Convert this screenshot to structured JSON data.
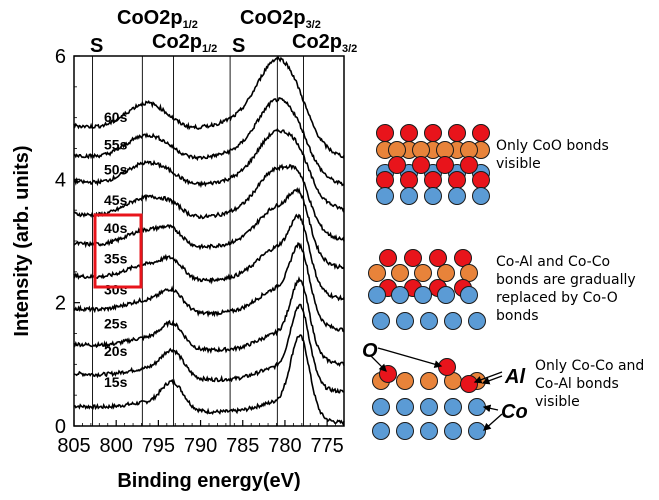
{
  "chart_data": {
    "type": "line",
    "xlabel": "Binding energy(eV)",
    "ylabel": "Intensity (arb. units)",
    "xlim": [
      805,
      773
    ],
    "ylim": [
      0,
      6
    ],
    "x_ticks": [
      "805",
      "800",
      "795",
      "790",
      "785",
      "780",
      "775"
    ],
    "y_ticks": [
      "0",
      "2",
      "4",
      "6"
    ],
    "top_labels": [
      {
        "main": "S",
        "sub": ""
      },
      {
        "main": "CoO2p",
        "sub": "1/2"
      },
      {
        "main": "Co2p",
        "sub": "1/2"
      },
      {
        "main": "S",
        "sub": ""
      },
      {
        "main": "CoO2p",
        "sub": "3/2"
      },
      {
        "main": "Co2p",
        "sub": "3/2"
      }
    ],
    "reference_lines_x": [
      802.8,
      796.9,
      793.2,
      786.5,
      780.9,
      777.8
    ],
    "highlight": {
      "series": [
        "40s",
        "35s"
      ],
      "color": "#e8141b"
    },
    "series": [
      {
        "name": "15s",
        "offset": 0.05,
        "co_metal_peak": 1.2,
        "coo_peak": 0.25,
        "co_metal_peak_half": 0.42,
        "coo_peak_half": 0.12
      },
      {
        "name": "20s",
        "offset": 0.55,
        "co_metal_peak": 1.15,
        "coo_peak": 0.3,
        "co_metal_peak_half": 0.4,
        "coo_peak_half": 0.15
      },
      {
        "name": "25s",
        "offset": 1.0,
        "co_metal_peak": 1.05,
        "coo_peak": 0.38,
        "co_metal_peak_half": 0.35,
        "coo_peak_half": 0.18
      },
      {
        "name": "30s",
        "offset": 1.55,
        "co_metal_peak": 0.95,
        "coo_peak": 0.55,
        "co_metal_peak_half": 0.3,
        "coo_peak_half": 0.22
      },
      {
        "name": "35s",
        "offset": 2.05,
        "co_metal_peak": 0.8,
        "coo_peak": 0.7,
        "co_metal_peak_half": 0.25,
        "coo_peak_half": 0.28
      },
      {
        "name": "40s",
        "offset": 2.55,
        "co_metal_peak": 0.6,
        "coo_peak": 0.85,
        "co_metal_peak_half": 0.2,
        "coo_peak_half": 0.32
      },
      {
        "name": "45s",
        "offset": 3.0,
        "co_metal_peak": 0.35,
        "coo_peak": 1.0,
        "coo_peak_half": 0.38,
        "co_metal_peak_half": 0.12
      },
      {
        "name": "50s",
        "offset": 3.5,
        "co_metal_peak": 0.2,
        "coo_peak": 1.1,
        "coo_peak_half": 0.42,
        "co_metal_peak_half": 0.06
      },
      {
        "name": "55s",
        "offset": 3.9,
        "co_metal_peak": 0.1,
        "coo_peak": 1.2,
        "coo_peak_half": 0.45,
        "co_metal_peak_half": 0.03
      },
      {
        "name": "60s",
        "offset": 4.35,
        "co_metal_peak": 0.05,
        "coo_peak": 1.4,
        "coo_peak_half": 0.5,
        "co_metal_peak_half": 0.0
      }
    ]
  },
  "legend_panels": [
    {
      "text_lines": [
        "Only CoO bonds",
        "visible"
      ]
    },
    {
      "text_lines": [
        "Co-Al and Co-Co",
        "bonds are gradually",
        "replaced by Co-O",
        "bonds"
      ]
    },
    {
      "text_lines": [
        "Only Co-Co and",
        "Co-Al bonds",
        "visible"
      ]
    }
  ],
  "callouts": {
    "o": "O",
    "al": "Al",
    "co": "Co"
  },
  "colors": {
    "oxygen": "#e8141b",
    "aluminum": "#e8833a",
    "cobalt": "#5b9bd5",
    "outline": "#1a1a1a"
  }
}
